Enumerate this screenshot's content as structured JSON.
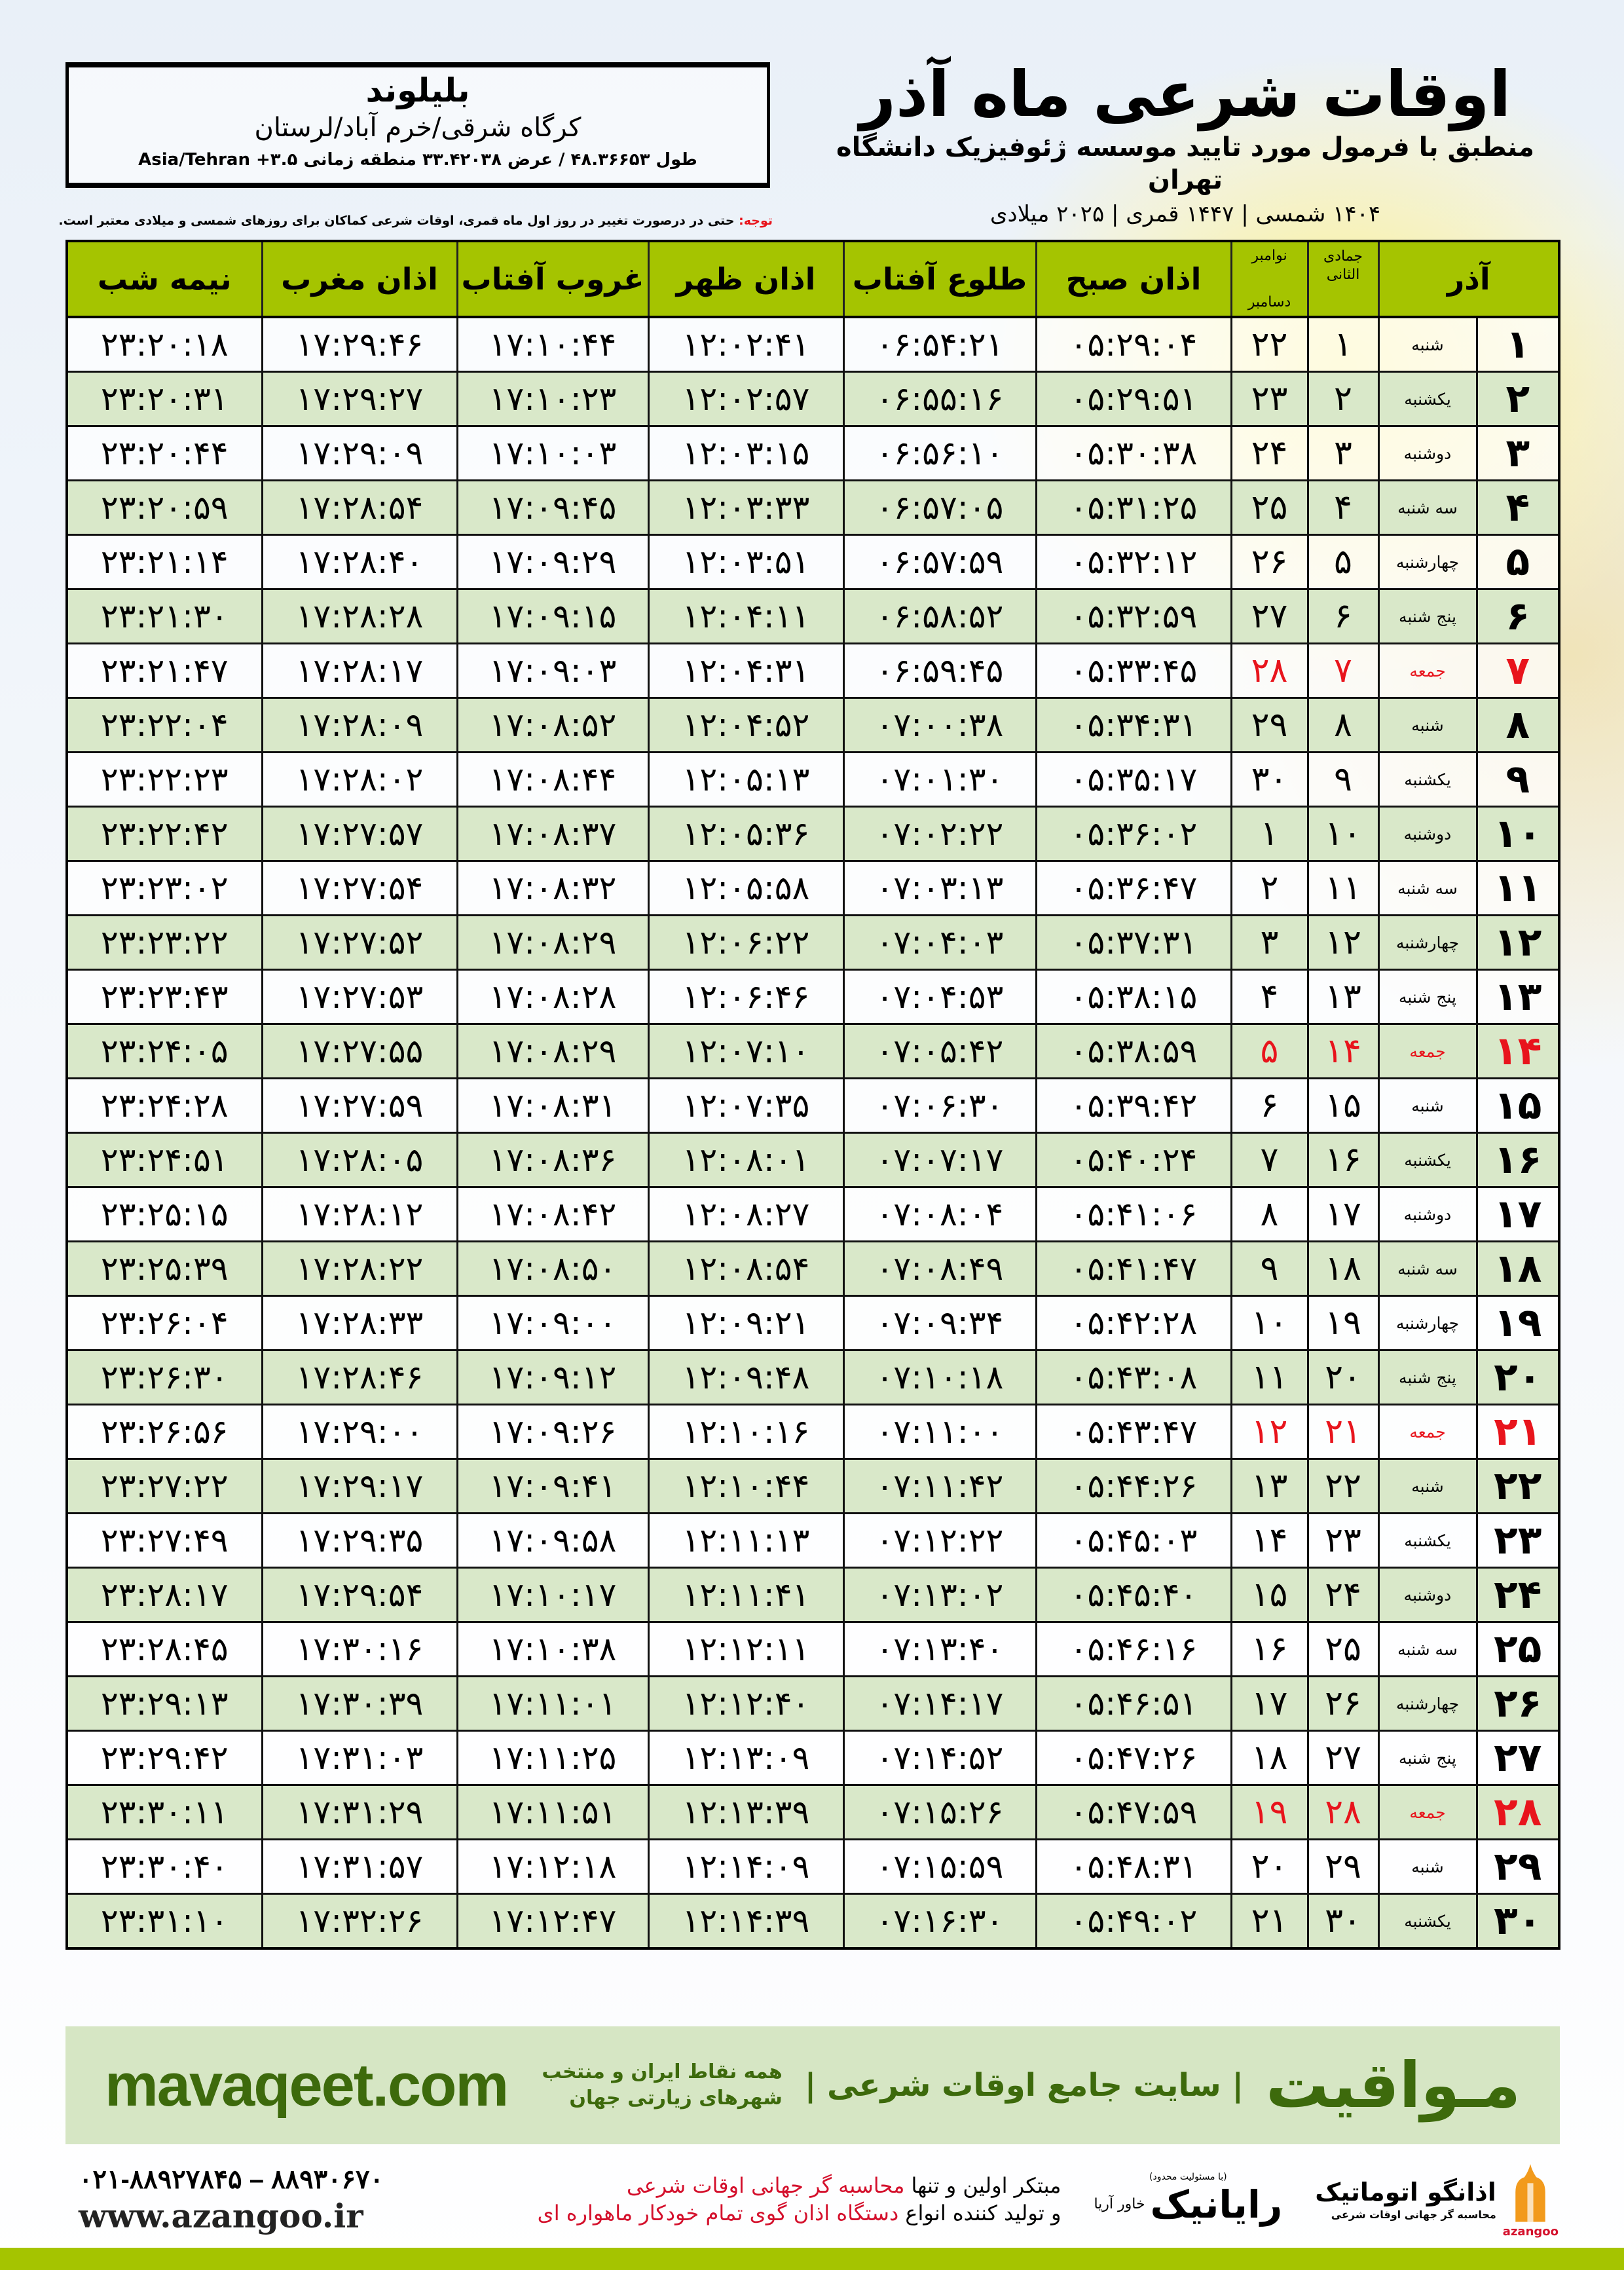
{
  "location": {
    "name": "بلیلوند",
    "region": "کرگاه شرقی/خرم آباد/لرستان",
    "coords": "طول ۴۸.۳۶۶۵۳ / عرض ۳۳.۴۲۰۳۸ منطقه زمانی ۳.۵+ Asia/Tehran"
  },
  "header": {
    "title": "اوقات شرعی ماه آذر",
    "subtitle": "منطبق با فرمول مورد تایید موسسه ژئوفیزیک دانشگاه تهران",
    "dateline": "۱۴۰۴ شمسی | ۱۴۴۷ قمری | ۲۰۲۵ میلادی"
  },
  "note": {
    "label": "توجه:",
    "text": " حتی در درصورت تغییر در روز اول ماه قمری، اوقات شرعی کماکان برای روزهای شمسی و میلادی معتبر است."
  },
  "colors": {
    "header_green": "#a5c400",
    "row_green": "#d9e8c9",
    "friday_red": "#e8141c",
    "brand_green": "#3d6a0c"
  },
  "table": {
    "headers": {
      "azar": "آذر",
      "hijri": "جمادی الثانی",
      "greg_top": "نوامبر",
      "greg_bottom": "دسامبر",
      "fajr": "اذان صبح",
      "sunrise": "طلوع آفتاب",
      "dhuhr": "اذان ظهر",
      "sunset": "غروب آفتاب",
      "maghrib": "اذان مغرب",
      "midnight": "نیمه شب"
    },
    "rows": [
      {
        "d": "۱",
        "w": "شنبه",
        "h": "۱",
        "g": "۲۲",
        "t": [
          "۰۵:۲۹:۰۴",
          "۰۶:۵۴:۲۱",
          "۱۲:۰۲:۴۱",
          "۱۷:۱۰:۴۴",
          "۱۷:۲۹:۴۶",
          "۲۳:۲۰:۱۸"
        ]
      },
      {
        "d": "۲",
        "w": "یکشنبه",
        "h": "۲",
        "g": "۲۳",
        "t": [
          "۰۵:۲۹:۵۱",
          "۰۶:۵۵:۱۶",
          "۱۲:۰۲:۵۷",
          "۱۷:۱۰:۲۳",
          "۱۷:۲۹:۲۷",
          "۲۳:۲۰:۳۱"
        ]
      },
      {
        "d": "۳",
        "w": "دوشنبه",
        "h": "۳",
        "g": "۲۴",
        "t": [
          "۰۵:۳۰:۳۸",
          "۰۶:۵۶:۱۰",
          "۱۲:۰۳:۱۵",
          "۱۷:۱۰:۰۳",
          "۱۷:۲۹:۰۹",
          "۲۳:۲۰:۴۴"
        ]
      },
      {
        "d": "۴",
        "w": "سه شنبه",
        "h": "۴",
        "g": "۲۵",
        "t": [
          "۰۵:۳۱:۲۵",
          "۰۶:۵۷:۰۵",
          "۱۲:۰۳:۳۳",
          "۱۷:۰۹:۴۵",
          "۱۷:۲۸:۵۴",
          "۲۳:۲۰:۵۹"
        ]
      },
      {
        "d": "۵",
        "w": "چهارشنبه",
        "h": "۵",
        "g": "۲۶",
        "t": [
          "۰۵:۳۲:۱۲",
          "۰۶:۵۷:۵۹",
          "۱۲:۰۳:۵۱",
          "۱۷:۰۹:۲۹",
          "۱۷:۲۸:۴۰",
          "۲۳:۲۱:۱۴"
        ]
      },
      {
        "d": "۶",
        "w": "پنج شنبه",
        "h": "۶",
        "g": "۲۷",
        "t": [
          "۰۵:۳۲:۵۹",
          "۰۶:۵۸:۵۲",
          "۱۲:۰۴:۱۱",
          "۱۷:۰۹:۱۵",
          "۱۷:۲۸:۲۸",
          "۲۳:۲۱:۳۰"
        ]
      },
      {
        "d": "۷",
        "w": "جمعه",
        "h": "۷",
        "g": "۲۸",
        "t": [
          "۰۵:۳۳:۴۵",
          "۰۶:۵۹:۴۵",
          "۱۲:۰۴:۳۱",
          "۱۷:۰۹:۰۳",
          "۱۷:۲۸:۱۷",
          "۲۳:۲۱:۴۷"
        ]
      },
      {
        "d": "۸",
        "w": "شنبه",
        "h": "۸",
        "g": "۲۹",
        "t": [
          "۰۵:۳۴:۳۱",
          "۰۷:۰۰:۳۸",
          "۱۲:۰۴:۵۲",
          "۱۷:۰۸:۵۲",
          "۱۷:۲۸:۰۹",
          "۲۳:۲۲:۰۴"
        ]
      },
      {
        "d": "۹",
        "w": "یکشنبه",
        "h": "۹",
        "g": "۳۰",
        "t": [
          "۰۵:۳۵:۱۷",
          "۰۷:۰۱:۳۰",
          "۱۲:۰۵:۱۳",
          "۱۷:۰۸:۴۴",
          "۱۷:۲۸:۰۲",
          "۲۳:۲۲:۲۳"
        ]
      },
      {
        "d": "۱۰",
        "w": "دوشنبه",
        "h": "۱۰",
        "g": "۱",
        "t": [
          "۰۵:۳۶:۰۲",
          "۰۷:۰۲:۲۲",
          "۱۲:۰۵:۳۶",
          "۱۷:۰۸:۳۷",
          "۱۷:۲۷:۵۷",
          "۲۳:۲۲:۴۲"
        ]
      },
      {
        "d": "۱۱",
        "w": "سه شنبه",
        "h": "۱۱",
        "g": "۲",
        "t": [
          "۰۵:۳۶:۴۷",
          "۰۷:۰۳:۱۳",
          "۱۲:۰۵:۵۸",
          "۱۷:۰۸:۳۲",
          "۱۷:۲۷:۵۴",
          "۲۳:۲۳:۰۲"
        ]
      },
      {
        "d": "۱۲",
        "w": "چهارشنبه",
        "h": "۱۲",
        "g": "۳",
        "t": [
          "۰۵:۳۷:۳۱",
          "۰۷:۰۴:۰۳",
          "۱۲:۰۶:۲۲",
          "۱۷:۰۸:۲۹",
          "۱۷:۲۷:۵۲",
          "۲۳:۲۳:۲۲"
        ]
      },
      {
        "d": "۱۳",
        "w": "پنج شنبه",
        "h": "۱۳",
        "g": "۴",
        "t": [
          "۰۵:۳۸:۱۵",
          "۰۷:۰۴:۵۳",
          "۱۲:۰۶:۴۶",
          "۱۷:۰۸:۲۸",
          "۱۷:۲۷:۵۳",
          "۲۳:۲۳:۴۳"
        ]
      },
      {
        "d": "۱۴",
        "w": "جمعه",
        "h": "۱۴",
        "g": "۵",
        "t": [
          "۰۵:۳۸:۵۹",
          "۰۷:۰۵:۴۲",
          "۱۲:۰۷:۱۰",
          "۱۷:۰۸:۲۹",
          "۱۷:۲۷:۵۵",
          "۲۳:۲۴:۰۵"
        ]
      },
      {
        "d": "۱۵",
        "w": "شنبه",
        "h": "۱۵",
        "g": "۶",
        "t": [
          "۰۵:۳۹:۴۲",
          "۰۷:۰۶:۳۰",
          "۱۲:۰۷:۳۵",
          "۱۷:۰۸:۳۱",
          "۱۷:۲۷:۵۹",
          "۲۳:۲۴:۲۸"
        ]
      },
      {
        "d": "۱۶",
        "w": "یکشنبه",
        "h": "۱۶",
        "g": "۷",
        "t": [
          "۰۵:۴۰:۲۴",
          "۰۷:۰۷:۱۷",
          "۱۲:۰۸:۰۱",
          "۱۷:۰۸:۳۶",
          "۱۷:۲۸:۰۵",
          "۲۳:۲۴:۵۱"
        ]
      },
      {
        "d": "۱۷",
        "w": "دوشنبه",
        "h": "۱۷",
        "g": "۸",
        "t": [
          "۰۵:۴۱:۰۶",
          "۰۷:۰۸:۰۴",
          "۱۲:۰۸:۲۷",
          "۱۷:۰۸:۴۲",
          "۱۷:۲۸:۱۲",
          "۲۳:۲۵:۱۵"
        ]
      },
      {
        "d": "۱۸",
        "w": "سه شنبه",
        "h": "۱۸",
        "g": "۹",
        "t": [
          "۰۵:۴۱:۴۷",
          "۰۷:۰۸:۴۹",
          "۱۲:۰۸:۵۴",
          "۱۷:۰۸:۵۰",
          "۱۷:۲۸:۲۲",
          "۲۳:۲۵:۳۹"
        ]
      },
      {
        "d": "۱۹",
        "w": "چهارشنبه",
        "h": "۱۹",
        "g": "۱۰",
        "t": [
          "۰۵:۴۲:۲۸",
          "۰۷:۰۹:۳۴",
          "۱۲:۰۹:۲۱",
          "۱۷:۰۹:۰۰",
          "۱۷:۲۸:۳۳",
          "۲۳:۲۶:۰۴"
        ]
      },
      {
        "d": "۲۰",
        "w": "پنج شنبه",
        "h": "۲۰",
        "g": "۱۱",
        "t": [
          "۰۵:۴۳:۰۸",
          "۰۷:۱۰:۱۸",
          "۱۲:۰۹:۴۸",
          "۱۷:۰۹:۱۲",
          "۱۷:۲۸:۴۶",
          "۲۳:۲۶:۳۰"
        ]
      },
      {
        "d": "۲۱",
        "w": "جمعه",
        "h": "۲۱",
        "g": "۱۲",
        "t": [
          "۰۵:۴۳:۴۷",
          "۰۷:۱۱:۰۰",
          "۱۲:۱۰:۱۶",
          "۱۷:۰۹:۲۶",
          "۱۷:۲۹:۰۰",
          "۲۳:۲۶:۵۶"
        ]
      },
      {
        "d": "۲۲",
        "w": "شنبه",
        "h": "۲۲",
        "g": "۱۳",
        "t": [
          "۰۵:۴۴:۲۶",
          "۰۷:۱۱:۴۲",
          "۱۲:۱۰:۴۴",
          "۱۷:۰۹:۴۱",
          "۱۷:۲۹:۱۷",
          "۲۳:۲۷:۲۲"
        ]
      },
      {
        "d": "۲۳",
        "w": "یکشنبه",
        "h": "۲۳",
        "g": "۱۴",
        "t": [
          "۰۵:۴۵:۰۳",
          "۰۷:۱۲:۲۲",
          "۱۲:۱۱:۱۳",
          "۱۷:۰۹:۵۸",
          "۱۷:۲۹:۳۵",
          "۲۳:۲۷:۴۹"
        ]
      },
      {
        "d": "۲۴",
        "w": "دوشنبه",
        "h": "۲۴",
        "g": "۱۵",
        "t": [
          "۰۵:۴۵:۴۰",
          "۰۷:۱۳:۰۲",
          "۱۲:۱۱:۴۱",
          "۱۷:۱۰:۱۷",
          "۱۷:۲۹:۵۴",
          "۲۳:۲۸:۱۷"
        ]
      },
      {
        "d": "۲۵",
        "w": "سه شنبه",
        "h": "۲۵",
        "g": "۱۶",
        "t": [
          "۰۵:۴۶:۱۶",
          "۰۷:۱۳:۴۰",
          "۱۲:۱۲:۱۱",
          "۱۷:۱۰:۳۸",
          "۱۷:۳۰:۱۶",
          "۲۳:۲۸:۴۵"
        ]
      },
      {
        "d": "۲۶",
        "w": "چهارشنبه",
        "h": "۲۶",
        "g": "۱۷",
        "t": [
          "۰۵:۴۶:۵۱",
          "۰۷:۱۴:۱۷",
          "۱۲:۱۲:۴۰",
          "۱۷:۱۱:۰۱",
          "۱۷:۳۰:۳۹",
          "۲۳:۲۹:۱۳"
        ]
      },
      {
        "d": "۲۷",
        "w": "پنج شنبه",
        "h": "۲۷",
        "g": "۱۸",
        "t": [
          "۰۵:۴۷:۲۶",
          "۰۷:۱۴:۵۲",
          "۱۲:۱۳:۰۹",
          "۱۷:۱۱:۲۵",
          "۱۷:۳۱:۰۳",
          "۲۳:۲۹:۴۲"
        ]
      },
      {
        "d": "۲۸",
        "w": "جمعه",
        "h": "۲۸",
        "g": "۱۹",
        "t": [
          "۰۵:۴۷:۵۹",
          "۰۷:۱۵:۲۶",
          "۱۲:۱۳:۳۹",
          "۱۷:۱۱:۵۱",
          "۱۷:۳۱:۲۹",
          "۲۳:۳۰:۱۱"
        ]
      },
      {
        "d": "۲۹",
        "w": "شنبه",
        "h": "۲۹",
        "g": "۲۰",
        "t": [
          "۰۵:۴۸:۳۱",
          "۰۷:۱۵:۵۹",
          "۱۲:۱۴:۰۹",
          "۱۷:۱۲:۱۸",
          "۱۷:۳۱:۵۷",
          "۲۳:۳۰:۴۰"
        ]
      },
      {
        "d": "۳۰",
        "w": "یکشنبه",
        "h": "۳۰",
        "g": "۲۱",
        "t": [
          "۰۵:۴۹:۰۲",
          "۰۷:۱۶:۳۰",
          "۱۲:۱۴:۳۹",
          "۱۷:۱۲:۴۷",
          "۱۷:۳۲:۲۶",
          "۲۳:۳۱:۱۰"
        ]
      }
    ]
  },
  "banner": {
    "brand": "مـواقیت",
    "tagline": "| سایت جامع اوقات شرعی |",
    "tagline2": "همه نقاط ایران و منتخب شهرهای زیارتی جهان",
    "site": "mavaqeet.com"
  },
  "footer": {
    "promo1_a": "مبتکر اولین و تنها ",
    "promo1_b": "محاسبه گر جهانی اوقات شرعی",
    "promo2_a": "و تولید کننده انواع ",
    "promo2_b": "دستگاه اذان گوی تمام خودکار ماهواره ای",
    "phone": "۰۲۱-۸۸۹۲۷۸۴۵ – ۸۸۹۳۰۶۷۰",
    "web": "www.azangoo.ir",
    "rayanik_note": "(با مسئولیت محدود)",
    "rayanik": "رایانیک",
    "rayanik_sub": "خاور آریا",
    "azangoo_name": "اذانگو اتوماتیک",
    "azangoo_sub": "محاسبه گر جهانی اوقات شرعی",
    "azangoo_en": "azangoo"
  }
}
